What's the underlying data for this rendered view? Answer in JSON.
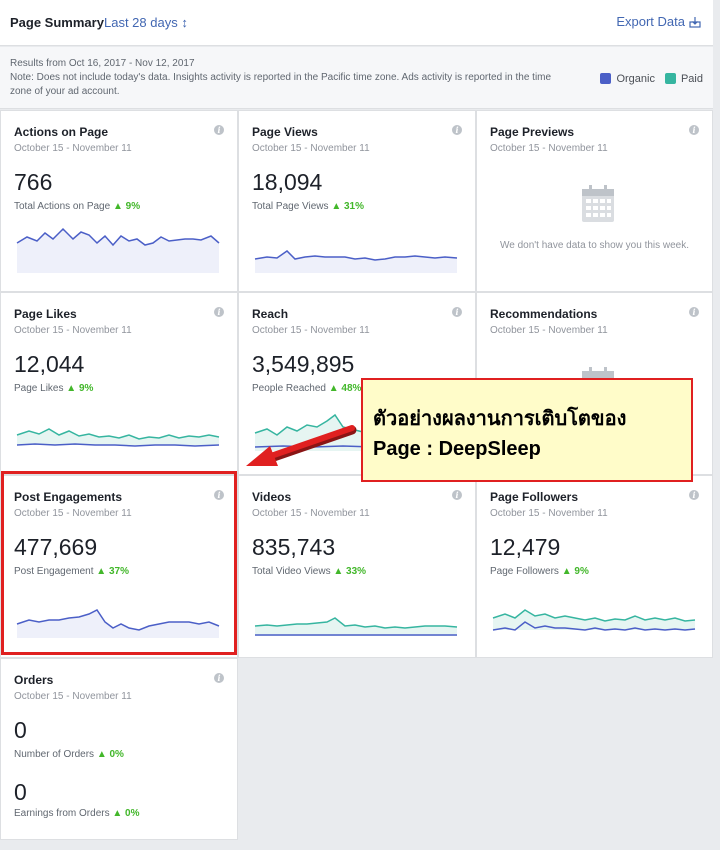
{
  "header": {
    "title": "Page Summary",
    "range": "Last 28 days ↕",
    "export": "Export Data"
  },
  "notes": {
    "results_prefix": "Results from ",
    "results_dates": "Oct 16, 2017 - Nov 12, 2017",
    "note": "Note: Does not include today's data. Insights activity is reported in the Pacific time zone. Ads activity is reported in the time zone of your ad account."
  },
  "legend": {
    "organic": "Organic",
    "paid": "Paid",
    "organic_color": "#4b5fc7",
    "paid_color": "#36b5a0"
  },
  "cards": {
    "actions": {
      "title": "Actions on Page",
      "date": "October 15 - November 11",
      "value": "766",
      "sub": "Total Actions on Page",
      "change": "▲ 9%"
    },
    "views": {
      "title": "Page Views",
      "date": "October 15 - November 11",
      "value": "18,094",
      "sub": "Total Page Views",
      "change": "▲ 31%"
    },
    "previews": {
      "title": "Page Previews",
      "date": "October 15 - November 11",
      "nodata": "We don't have data to show you this week."
    },
    "likes": {
      "title": "Page Likes",
      "date": "October 15 - November 11",
      "value": "12,044",
      "sub": "Page Likes",
      "change": "▲ 9%"
    },
    "reach": {
      "title": "Reach",
      "date": "October 15 - November 11",
      "value": "3,549,895",
      "sub": "People Reached",
      "change": "▲ 48%"
    },
    "recommendations": {
      "title": "Recommendations",
      "date": "October 15 - November 11"
    },
    "engagements": {
      "title": "Post Engagements",
      "date": "October 15 - November 11",
      "value": "477,669",
      "sub": "Post Engagement",
      "change": "▲ 37%"
    },
    "videos": {
      "title": "Videos",
      "date": "October 15 - November 11",
      "value": "835,743",
      "sub": "Total Video Views",
      "change": "▲ 33%"
    },
    "followers": {
      "title": "Page Followers",
      "date": "October 15 - November 11",
      "value": "12,479",
      "sub": "Page Followers",
      "change": "▲ 9%"
    },
    "orders": {
      "title": "Orders",
      "date": "October 15 - November 11",
      "value1": "0",
      "sub1": "Number of Orders",
      "change1": "▲ 0%",
      "value2": "0",
      "sub2": "Earnings from Orders",
      "change2": "▲ 0%"
    }
  },
  "callout": {
    "line1": "ตัวอย่างผลงานการเติบโตของ",
    "line2": "Page : DeepSleep"
  }
}
